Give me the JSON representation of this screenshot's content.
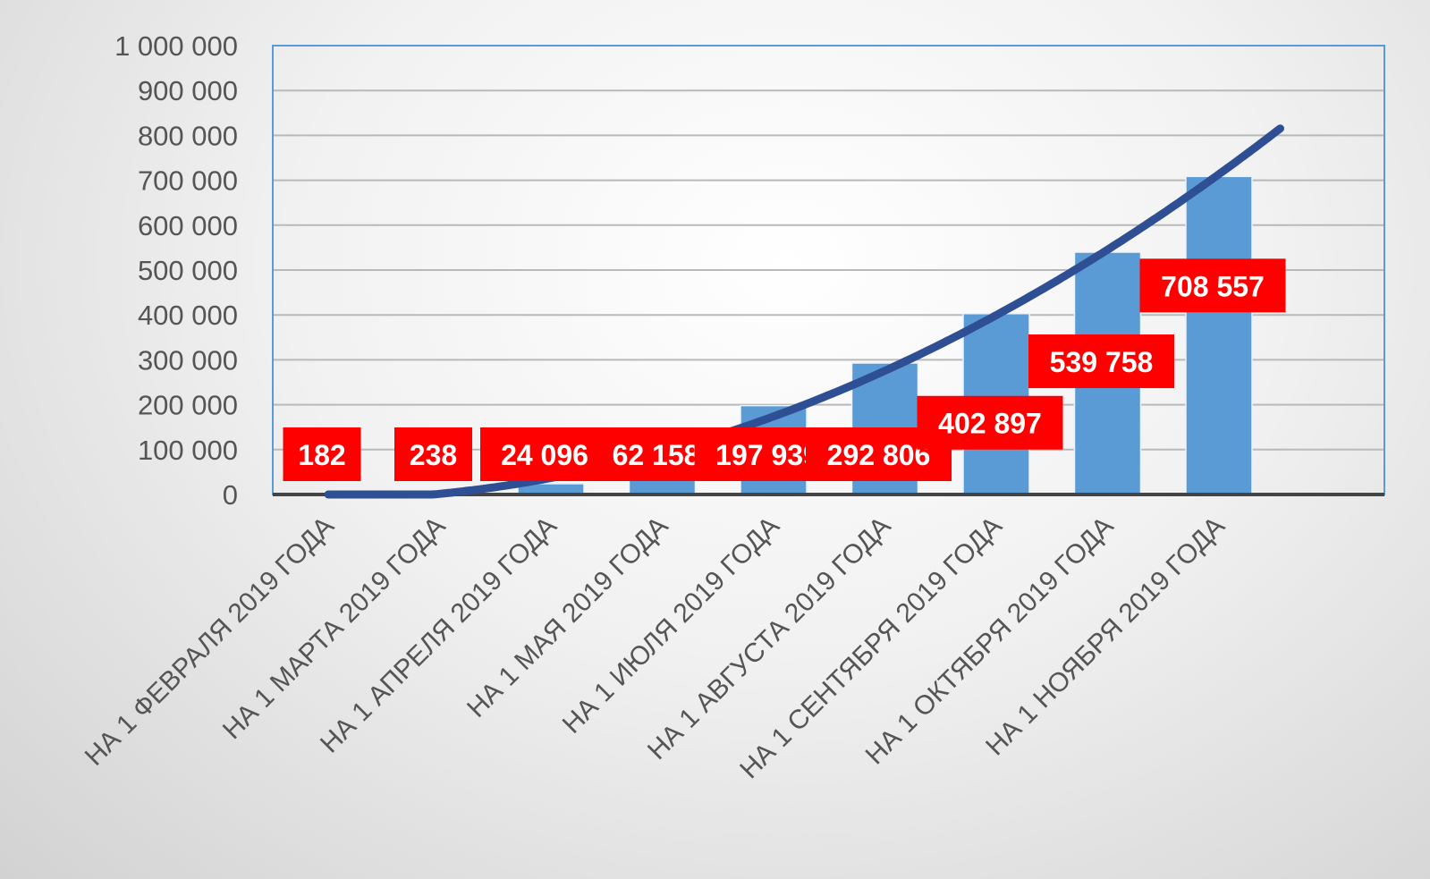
{
  "chart_data": {
    "type": "bar",
    "title": "",
    "xlabel": "",
    "ylabel": "",
    "ylim": [
      0,
      1000000
    ],
    "yticks": [
      0,
      100000,
      200000,
      300000,
      400000,
      500000,
      600000,
      700000,
      800000,
      900000,
      1000000
    ],
    "ytick_labels": [
      "0",
      "100 000",
      "200 000",
      "300 000",
      "400 000",
      "500 000",
      "600 000",
      "700 000",
      "800 000",
      "900 000",
      "1 000 000"
    ],
    "categories": [
      "НА 1  ФЕВРАЛЯ 2019 ГОДА",
      "НА 1  МАРТА 2019 ГОДА",
      "НА 1  АПРЕЛЯ 2019 ГОДА",
      "НА 1  МАЯ 2019 ГОДА",
      "НА 1  ИЮЛЯ 2019 ГОДА",
      "НА 1  АВГУСТА 2019 ГОДА",
      "НА 1  СЕНТЯБРЯ 2019 ГОДА",
      "НА 1  ОКТЯБРЯ 2019 ГОДА",
      "НА 1  НОЯБРЯ 2019 ГОДА"
    ],
    "values": [
      182,
      238,
      24096,
      62158,
      197939,
      292806,
      402897,
      539758,
      708557
    ],
    "data_labels": [
      "182",
      "238",
      "24 096",
      "62 158",
      "197 939",
      "292 806",
      "402 897",
      "539 758",
      "708 557"
    ],
    "trendline": {
      "type": "polynomial",
      "color": "#2f4f94"
    },
    "grid": true,
    "legend": "none",
    "colors": {
      "bar": "#5b9bd5",
      "label_bg": "#ff0000",
      "label_text": "#ffffff",
      "plot_border": "#5b9bd5"
    }
  }
}
